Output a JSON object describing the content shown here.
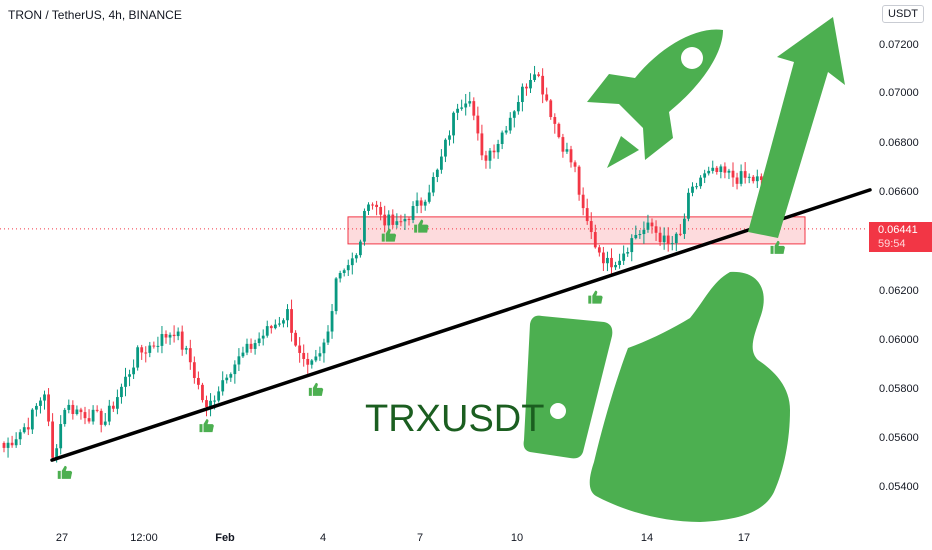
{
  "header": {
    "title": "TRON / TetherUS, 4h, BINANCE",
    "currency": "USDT"
  },
  "price_tag": {
    "price": "0.06441",
    "countdown": "59:54"
  },
  "colors": {
    "up": "#089981",
    "down": "#f23645",
    "support_zone": "#f23645",
    "trendline": "#000000",
    "thumb": "#4caf50",
    "annotation_text": "#1b5e20"
  },
  "chart_data": {
    "type": "candlestick",
    "title": "TRON / TetherUS, 4h, BINANCE",
    "xlabel": "",
    "ylabel": "",
    "y_ticks": [
      "0.07200",
      "0.07000",
      "0.06800",
      "0.06600",
      "0.06200",
      "0.06000",
      "0.05800",
      "0.05600",
      "0.05400"
    ],
    "x_ticks": [
      "27",
      "12:00",
      "Feb",
      "4",
      "7",
      "10",
      "14",
      "17"
    ],
    "ylim": [
      0.0533,
      0.0736
    ],
    "last_price": 0.06441,
    "waypoints": [
      [
        0,
        0.0555
      ],
      [
        6,
        0.0565
      ],
      [
        10,
        0.0578
      ],
      [
        12,
        0.055
      ],
      [
        15,
        0.0572
      ],
      [
        25,
        0.0566
      ],
      [
        33,
        0.0593
      ],
      [
        42,
        0.0603
      ],
      [
        46,
        0.059
      ],
      [
        48,
        0.058
      ],
      [
        50,
        0.057
      ],
      [
        55,
        0.0586
      ],
      [
        62,
        0.0598
      ],
      [
        70,
        0.061
      ],
      [
        73,
        0.0592
      ],
      [
        75,
        0.0586
      ],
      [
        78,
        0.0592
      ],
      [
        80,
        0.0602
      ],
      [
        82,
        0.0625
      ],
      [
        84,
        0.0629
      ],
      [
        87,
        0.0632
      ],
      [
        90,
        0.0657
      ],
      [
        94,
        0.0648
      ],
      [
        97,
        0.0645
      ],
      [
        103,
        0.0655
      ],
      [
        107,
        0.0667
      ],
      [
        112,
        0.0695
      ],
      [
        115,
        0.0699
      ],
      [
        118,
        0.0672
      ],
      [
        122,
        0.068
      ],
      [
        127,
        0.0697
      ],
      [
        131,
        0.071
      ],
      [
        134,
        0.0697
      ],
      [
        137,
        0.0682
      ],
      [
        141,
        0.0668
      ],
      [
        143,
        0.065
      ],
      [
        146,
        0.0638
      ],
      [
        149,
        0.063
      ],
      [
        152,
        0.0633
      ],
      [
        156,
        0.0642
      ],
      [
        160,
        0.0645
      ],
      [
        164,
        0.0637
      ],
      [
        167,
        0.0641
      ],
      [
        169,
        0.0656
      ],
      [
        172,
        0.0665
      ],
      [
        176,
        0.0667
      ],
      [
        181,
        0.0665
      ],
      [
        186,
        0.0664
      ],
      [
        189,
        0.0659
      ],
      [
        191,
        0.0643
      ]
    ],
    "support_zone": [
      0.0638,
      0.0649
    ],
    "trendline": [
      [
        0.055,
        0
      ],
      [
        0.066,
        1
      ]
    ],
    "bull_markers_at_candle": [
      15,
      50,
      77,
      95,
      103,
      146,
      191
    ]
  },
  "annotation": {
    "symbol_text": "TRXUSDT"
  }
}
